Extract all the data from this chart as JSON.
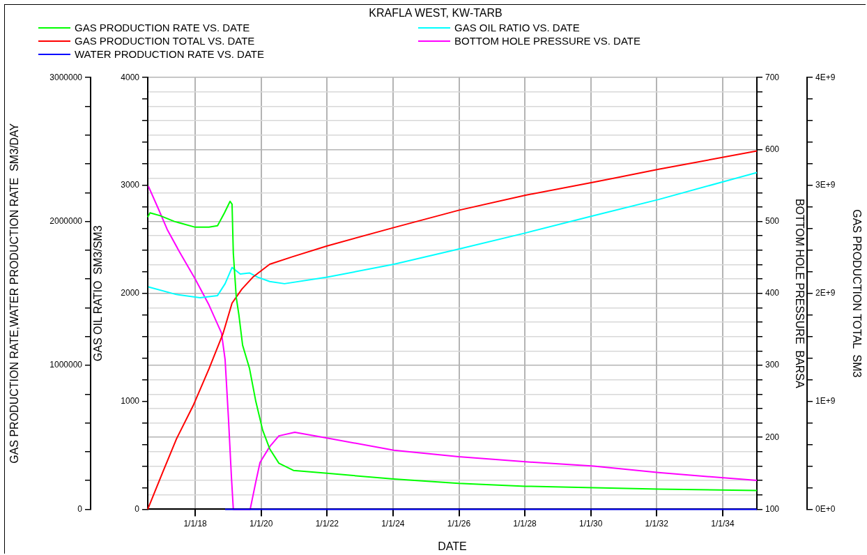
{
  "chart_data": [
    {
      "type": "line",
      "title": "KRAFLA WEST, KW-TARB",
      "xlabel": "DATE",
      "ylabel": "GAS PRODUCTION RATE,WATER PRODUCTION RATE  SM3/DAY",
      "y2label": "GAS PRODUCTION TOTAL  SM3",
      "xlim": [
        "2016-07-24",
        "2035-01-15"
      ],
      "xticks": [
        {
          "value": "2018-01-01",
          "label": "1/1/18"
        },
        {
          "value": "2020-01-01",
          "label": "1/1/20"
        },
        {
          "value": "2022-01-01",
          "label": "1/1/22"
        },
        {
          "value": "2024-01-01",
          "label": "1/1/24"
        },
        {
          "value": "2026-01-01",
          "label": "1/1/26"
        },
        {
          "value": "2028-01-01",
          "label": "1/1/28"
        },
        {
          "value": "2030-01-01",
          "label": "1/1/30"
        },
        {
          "value": "2032-01-01",
          "label": "1/1/32"
        },
        {
          "value": "2034-01-01",
          "label": "1/1/34"
        }
      ],
      "ylim": [
        0,
        3000000
      ],
      "yticks": [
        0,
        {
          "value": 200000,
          "label": null
        },
        {
          "value": 400000,
          "label": null
        },
        {
          "value": 600000,
          "label": null
        },
        {
          "value": 800000,
          "label": null
        },
        1000000,
        {
          "value": 1200000,
          "label": null
        },
        {
          "value": 1400000,
          "label": null
        },
        {
          "value": 1600000,
          "label": null
        },
        {
          "value": 1800000,
          "label": null
        },
        2000000,
        {
          "value": 2200000,
          "label": null
        },
        {
          "value": 2400000,
          "label": null
        },
        {
          "value": 2600000,
          "label": null
        },
        {
          "value": 2800000,
          "label": null
        },
        3000000
      ],
      "y2lim": [
        0,
        4000000000
      ],
      "y2ticks": [
        {
          "value": 0,
          "label": "0E+0"
        },
        {
          "value": 200000000,
          "label": null
        },
        {
          "value": 400000000,
          "label": null
        },
        {
          "value": 600000000,
          "label": null
        },
        {
          "value": 800000000,
          "label": null
        },
        {
          "value": 1000000000,
          "label": "1E+9"
        },
        {
          "value": 1200000000,
          "label": null
        },
        {
          "value": 1400000000,
          "label": null
        },
        {
          "value": 1600000000,
          "label": null
        },
        {
          "value": 1800000000,
          "label": null
        },
        {
          "value": 2000000000,
          "label": "2E+9"
        },
        {
          "value": 2200000000,
          "label": null
        },
        {
          "value": 2400000000,
          "label": null
        },
        {
          "value": 2600000000,
          "label": null
        },
        {
          "value": 2800000000,
          "label": null
        },
        {
          "value": 3000000000,
          "label": "3E+9"
        },
        {
          "value": 3200000000,
          "label": null
        },
        {
          "value": 3400000000,
          "label": null
        },
        {
          "value": 3600000000,
          "label": null
        },
        {
          "value": 3800000000,
          "label": null
        },
        {
          "value": 4000000000,
          "label": "4E+9"
        }
      ],
      "legend": "top",
      "marker": "none",
      "line_style": "solid",
      "series": [
        {
          "name": "GAS PRODUCTION RATE VS. DATE",
          "color": "#00ff00",
          "x": [
            "2016-07-24",
            "2016-08-18",
            "2016-12-09",
            "2017-05-15",
            "2018-01-01",
            "2018-06-02",
            "2018-09-05",
            "2018-11-21",
            "2019-01-22",
            "2019-02-13",
            "2019-02-27",
            "2019-04-01",
            "2019-04-30",
            "2019-06-10",
            "2019-08-25",
            "2019-11-03",
            "2020-01-18",
            "2020-04-05",
            "2020-07-16",
            "2020-12-24",
            "2022-01-01",
            "2024-01-11",
            "2025-12-28",
            "2028-01-08",
            "2030-02-03",
            "2032-01-22",
            "2035-01-15"
          ],
          "values": [
            2030000,
            2060000,
            2040000,
            2000000,
            1960000,
            1960000,
            1970000,
            2060000,
            2140000,
            2120000,
            1780000,
            1470000,
            1350000,
            1140000,
            980000,
            750000,
            550000,
            420000,
            320000,
            270000,
            250000,
            210000,
            180000,
            160000,
            150000,
            140000,
            130000
          ]
        },
        {
          "name": "GAS PRODUCTION TOTAL VS. DATE",
          "color": "#ff0000",
          "axis": "y2",
          "x": [
            "2016-07-24",
            "2017-01-04",
            "2017-06-06",
            "2017-12-09",
            "2018-06-02",
            "2018-11-06",
            "2019-02-13",
            "2019-06-02",
            "2019-10-01",
            "2020-04-05",
            "2020-12-16",
            "2022-01-01",
            "2024-01-11",
            "2025-12-28",
            "2028-01-08",
            "2030-02-03",
            "2032-01-22",
            "2035-01-15"
          ],
          "values": [
            0,
            340000000,
            650000000,
            960000000,
            1300000000,
            1630000000,
            1910000000,
            2040000000,
            2150000000,
            2270000000,
            2340000000,
            2440000000,
            2610000000,
            2770000000,
            2910000000,
            3030000000,
            3150000000,
            3320000000
          ]
        },
        {
          "name": "WATER PRODUCTION RATE VS. DATE",
          "color": "#0000ff",
          "x": [
            "2018-11-28",
            "2035-01-15"
          ],
          "values": [
            0,
            0
          ]
        }
      ]
    },
    {
      "type": "line",
      "ylabel": "GAS OIL RATIO  SM3/SM3",
      "y2label": "BOTTOM HOLE PRESSURE  BARSA",
      "xlim": [
        "2016-07-24",
        "2035-01-15"
      ],
      "xticks": [
        {
          "value": "2018-01-01",
          "label": null
        },
        {
          "value": "2020-01-01",
          "label": null
        },
        {
          "value": "2022-01-01",
          "label": null
        },
        {
          "value": "2024-01-01",
          "label": null
        },
        {
          "value": "2026-01-01",
          "label": null
        },
        {
          "value": "2028-01-01",
          "label": null
        },
        {
          "value": "2030-01-01",
          "label": null
        },
        {
          "value": "2032-01-01",
          "label": null
        },
        {
          "value": "2034-01-01",
          "label": null
        }
      ],
      "ylim": [
        0,
        4000
      ],
      "yticks": [
        0,
        {
          "value": 200,
          "label": null
        },
        {
          "value": 400,
          "label": null
        },
        {
          "value": 600,
          "label": null
        },
        {
          "value": 800,
          "label": null
        },
        1000,
        {
          "value": 1200,
          "label": null
        },
        {
          "value": 1400,
          "label": null
        },
        {
          "value": 1600,
          "label": null
        },
        {
          "value": 1800,
          "label": null
        },
        2000,
        {
          "value": 2200,
          "label": null
        },
        {
          "value": 2400,
          "label": null
        },
        {
          "value": 2600,
          "label": null
        },
        {
          "value": 2800,
          "label": null
        },
        3000,
        {
          "value": 3200,
          "label": null
        },
        {
          "value": 3400,
          "label": null
        },
        {
          "value": 3600,
          "label": null
        },
        {
          "value": 3800,
          "label": null
        },
        4000
      ],
      "y2lim": [
        100,
        700
      ],
      "y2ticks": [
        100,
        {
          "value": 120,
          "label": null
        },
        {
          "value": 140,
          "label": null
        },
        {
          "value": 160,
          "label": null
        },
        {
          "value": 180,
          "label": null
        },
        200,
        {
          "value": 220,
          "label": null
        },
        {
          "value": 240,
          "label": null
        },
        {
          "value": 260,
          "label": null
        },
        {
          "value": 280,
          "label": null
        },
        300,
        {
          "value": 320,
          "label": null
        },
        {
          "value": 340,
          "label": null
        },
        {
          "value": 360,
          "label": null
        },
        {
          "value": 380,
          "label": null
        },
        400,
        {
          "value": 420,
          "label": null
        },
        {
          "value": 440,
          "label": null
        },
        {
          "value": 460,
          "label": null
        },
        {
          "value": 480,
          "label": null
        },
        500,
        {
          "value": 520,
          "label": null
        },
        {
          "value": 540,
          "label": null
        },
        {
          "value": 560,
          "label": null
        },
        {
          "value": 580,
          "label": null
        },
        600,
        {
          "value": 620,
          "label": null
        },
        {
          "value": 640,
          "label": null
        },
        {
          "value": 660,
          "label": null
        },
        {
          "value": 680,
          "label": null
        },
        700
      ],
      "grid": true,
      "legend": "top",
      "tick_labels": "y",
      "marker": "none",
      "line_style": "solid",
      "series": [
        {
          "name": "GAS OIL RATIO VS. DATE",
          "color": "#00ffff",
          "x": [
            "2016-07-31",
            "2017-06-06",
            "2018-02-24",
            "2018-09-05",
            "2018-11-28",
            "2019-02-13",
            "2019-05-15",
            "2019-08-25",
            "2019-11-25",
            "2020-04-05",
            "2020-09-16",
            "2022-01-01",
            "2024-01-11",
            "2025-12-28",
            "2028-01-08",
            "2030-02-03",
            "2032-01-22",
            "2035-01-15"
          ],
          "values": [
            2060,
            1990,
            1960,
            1980,
            2090,
            2240,
            2180,
            2190,
            2150,
            2110,
            2090,
            2150,
            2270,
            2410,
            2560,
            2720,
            2870,
            3120
          ]
        },
        {
          "name": "BOTTOM HOLE PRESSURE VS. DATE",
          "color": "#ff00ff",
          "axis": "y2",
          "x": [
            "2016-07-31",
            "2016-11-17",
            "2017-02-24",
            "2017-07-05",
            "2018-01-01",
            "2018-06-02",
            "2018-10-19",
            "2018-11-28",
            "2019-01-04",
            "2019-02-06",
            "2019-02-27",
            "2019-09-02",
            "2019-11-03",
            "2019-12-20",
            "2020-04-05",
            "2020-07-16",
            "2021-01-08",
            "2022-01-01",
            "2024-01-11",
            "2025-12-28",
            "2028-01-08",
            "2030-02-03",
            "2032-01-22",
            "2035-01-15"
          ],
          "values": [
            549,
            518,
            489,
            459,
            420,
            384,
            345,
            308,
            227,
            145,
            100,
            100,
            138,
            165,
            187,
            202,
            207,
            199,
            182,
            173,
            166,
            160,
            151,
            140
          ]
        }
      ]
    }
  ]
}
